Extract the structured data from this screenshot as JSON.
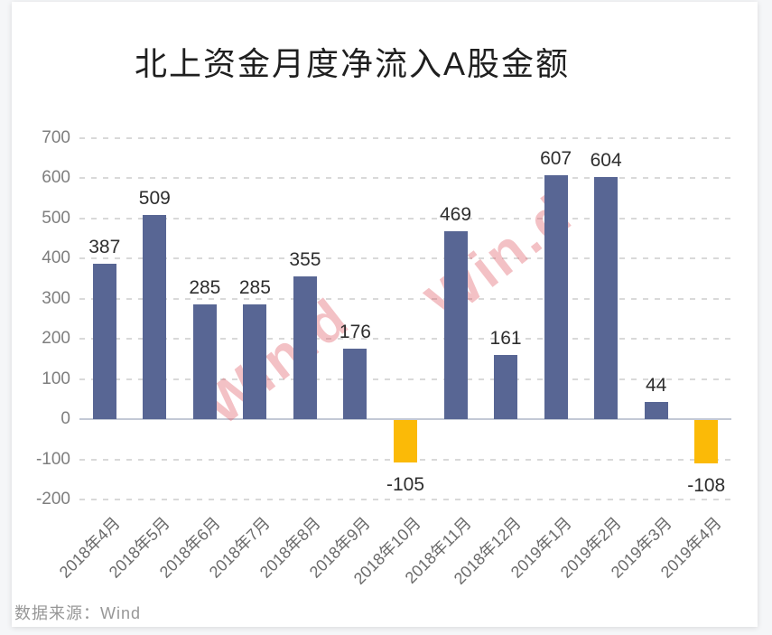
{
  "page": {
    "source_label": "数据来源：Wind",
    "watermark_text": "Win.d"
  },
  "chart_data": {
    "type": "bar",
    "title": "北上资金月度净流入A股金额",
    "categories": [
      "2018年4月",
      "2018年5月",
      "2018年6月",
      "2018年7月",
      "2018年8月",
      "2018年9月",
      "2018年10月",
      "2018年11月",
      "2018年12月",
      "2019年1月",
      "2019年2月",
      "2019年3月",
      "2019年4月"
    ],
    "values": [
      387,
      509,
      285,
      285,
      355,
      176,
      -105,
      469,
      161,
      607,
      604,
      44,
      -108
    ],
    "yticks": [
      700,
      600,
      500,
      400,
      300,
      200,
      100,
      0,
      -100,
      -200
    ],
    "ylim": [
      -200,
      700
    ],
    "xlabel": "",
    "ylabel": "",
    "grid": true,
    "legend": "none",
    "colors": {
      "bar_positive": "#586694",
      "bar_negative": "#FBBA07",
      "value_label": "#2e2e2e",
      "axis_tick_label": "#7e7e7e",
      "grid_line": "#d9d9d9",
      "zero_line": "#c3c9d5",
      "watermark": "#E05D67"
    }
  }
}
